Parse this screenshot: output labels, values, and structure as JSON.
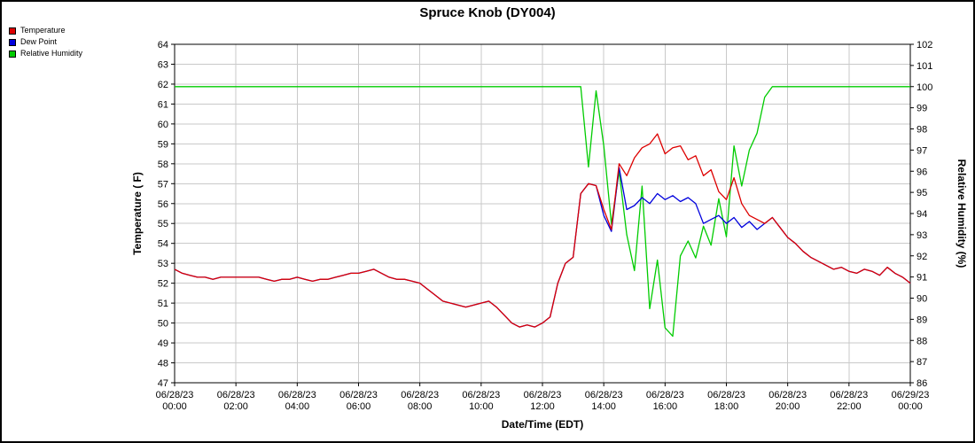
{
  "chart_data": {
    "type": "line",
    "title": "Spruce Knob (DY004)",
    "xlabel": "Date/Time (EDT)",
    "ylabel_left": "Temperature ( F)",
    "ylabel_right": "Relative Humidity (%)",
    "ylim_left": [
      47,
      64
    ],
    "ylim_right": [
      86,
      102
    ],
    "grid": true,
    "grid_color": "#c9c9c9",
    "legend_position": "top-left",
    "x_tick_step_hours": 2,
    "x_ticks": [
      {
        "date": "06/28/23",
        "time": "00:00"
      },
      {
        "date": "06/28/23",
        "time": "02:00"
      },
      {
        "date": "06/28/23",
        "time": "04:00"
      },
      {
        "date": "06/28/23",
        "time": "06:00"
      },
      {
        "date": "06/28/23",
        "time": "08:00"
      },
      {
        "date": "06/28/23",
        "time": "10:00"
      },
      {
        "date": "06/28/23",
        "time": "12:00"
      },
      {
        "date": "06/28/23",
        "time": "14:00"
      },
      {
        "date": "06/28/23",
        "time": "16:00"
      },
      {
        "date": "06/28/23",
        "time": "18:00"
      },
      {
        "date": "06/28/23",
        "time": "20:00"
      },
      {
        "date": "06/28/23",
        "time": "22:00"
      },
      {
        "date": "06/29/23",
        "time": "00:00"
      }
    ],
    "x": [
      0,
      0.25,
      0.5,
      0.75,
      1,
      1.25,
      1.5,
      1.75,
      2,
      2.25,
      2.5,
      2.75,
      3,
      3.25,
      3.5,
      3.75,
      4,
      4.25,
      4.5,
      4.75,
      5,
      5.25,
      5.5,
      5.75,
      6,
      6.25,
      6.5,
      6.75,
      7,
      7.25,
      7.5,
      7.75,
      8,
      8.25,
      8.5,
      8.75,
      9,
      9.25,
      9.5,
      9.75,
      10,
      10.25,
      10.5,
      10.75,
      11,
      11.25,
      11.5,
      11.75,
      12,
      12.25,
      12.5,
      12.75,
      13,
      13.25,
      13.5,
      13.75,
      14,
      14.25,
      14.5,
      14.75,
      15,
      15.25,
      15.5,
      15.75,
      16,
      16.25,
      16.5,
      16.75,
      17,
      17.25,
      17.5,
      17.75,
      18,
      18.25,
      18.5,
      18.75,
      19,
      19.25,
      19.5,
      19.75,
      20,
      20.25,
      20.5,
      20.75,
      21,
      21.25,
      21.5,
      21.75,
      22,
      22.25,
      22.5,
      22.75,
      23,
      23.25,
      23.5,
      23.75,
      24
    ],
    "series": [
      {
        "name": "Temperature",
        "axis": "left",
        "color": "#dd0000",
        "values": [
          52.7,
          52.5,
          52.4,
          52.3,
          52.3,
          52.2,
          52.3,
          52.3,
          52.3,
          52.3,
          52.3,
          52.3,
          52.2,
          52.1,
          52.2,
          52.2,
          52.3,
          52.2,
          52.1,
          52.2,
          52.2,
          52.3,
          52.4,
          52.5,
          52.5,
          52.6,
          52.7,
          52.5,
          52.3,
          52.2,
          52.2,
          52.1,
          52.0,
          51.7,
          51.4,
          51.1,
          51.0,
          50.9,
          50.8,
          50.9,
          51.0,
          51.1,
          50.8,
          50.4,
          50.0,
          49.8,
          49.9,
          49.8,
          50.0,
          50.3,
          52.0,
          53.0,
          53.3,
          56.5,
          57.0,
          56.9,
          55.7,
          54.7,
          58.0,
          57.4,
          58.3,
          58.8,
          59.0,
          59.5,
          58.5,
          58.8,
          58.9,
          58.2,
          58.4,
          57.4,
          57.7,
          56.6,
          56.2,
          57.3,
          56.0,
          55.4,
          55.2,
          55.0,
          55.3,
          54.8,
          54.3,
          54.0,
          53.6,
          53.3,
          53.1,
          52.9,
          52.7,
          52.8,
          52.6,
          52.5,
          52.7,
          52.6,
          52.4,
          52.8,
          52.5,
          52.3,
          52.0
        ]
      },
      {
        "name": "Dew Point",
        "axis": "left",
        "color": "#0000dd",
        "values": [
          52.7,
          52.5,
          52.4,
          52.3,
          52.3,
          52.2,
          52.3,
          52.3,
          52.3,
          52.3,
          52.3,
          52.3,
          52.2,
          52.1,
          52.2,
          52.2,
          52.3,
          52.2,
          52.1,
          52.2,
          52.2,
          52.3,
          52.4,
          52.5,
          52.5,
          52.6,
          52.7,
          52.5,
          52.3,
          52.2,
          52.2,
          52.1,
          52.0,
          51.7,
          51.4,
          51.1,
          51.0,
          50.9,
          50.8,
          50.9,
          51.0,
          51.1,
          50.8,
          50.4,
          50.0,
          49.8,
          49.9,
          49.8,
          50.0,
          50.3,
          52.0,
          53.0,
          53.3,
          56.5,
          57.0,
          56.9,
          55.4,
          54.6,
          57.8,
          55.7,
          55.9,
          56.3,
          56.0,
          56.5,
          56.2,
          56.4,
          56.1,
          56.3,
          56.0,
          55.0,
          55.2,
          55.4,
          55.0,
          55.3,
          54.8,
          55.1,
          54.7,
          55.0,
          55.3,
          54.8,
          54.3,
          54.0,
          53.6,
          53.3,
          53.1,
          52.9,
          52.7,
          52.8,
          52.6,
          52.5,
          52.7,
          52.6,
          52.4,
          52.8,
          52.5,
          52.3,
          52.0
        ]
      },
      {
        "name": "Relative Humidity",
        "axis": "right",
        "color": "#00cc00",
        "values": [
          100,
          100,
          100,
          100,
          100,
          100,
          100,
          100,
          100,
          100,
          100,
          100,
          100,
          100,
          100,
          100,
          100,
          100,
          100,
          100,
          100,
          100,
          100,
          100,
          100,
          100,
          100,
          100,
          100,
          100,
          100,
          100,
          100,
          100,
          100,
          100,
          100,
          100,
          100,
          100,
          100,
          100,
          100,
          100,
          100,
          100,
          100,
          100,
          100,
          100,
          100,
          100,
          100,
          100,
          96.2,
          99.8,
          97.2,
          93.5,
          96.0,
          93.0,
          91.3,
          95.3,
          89.5,
          91.8,
          88.6,
          88.2,
          92.0,
          92.7,
          91.9,
          93.4,
          92.5,
          94.7,
          92.9,
          97.2,
          95.3,
          97.0,
          97.8,
          99.5,
          100,
          100,
          100,
          100,
          100,
          100,
          100,
          100,
          100,
          100,
          100,
          100,
          100,
          100,
          100,
          100,
          100,
          100,
          100
        ]
      }
    ]
  }
}
